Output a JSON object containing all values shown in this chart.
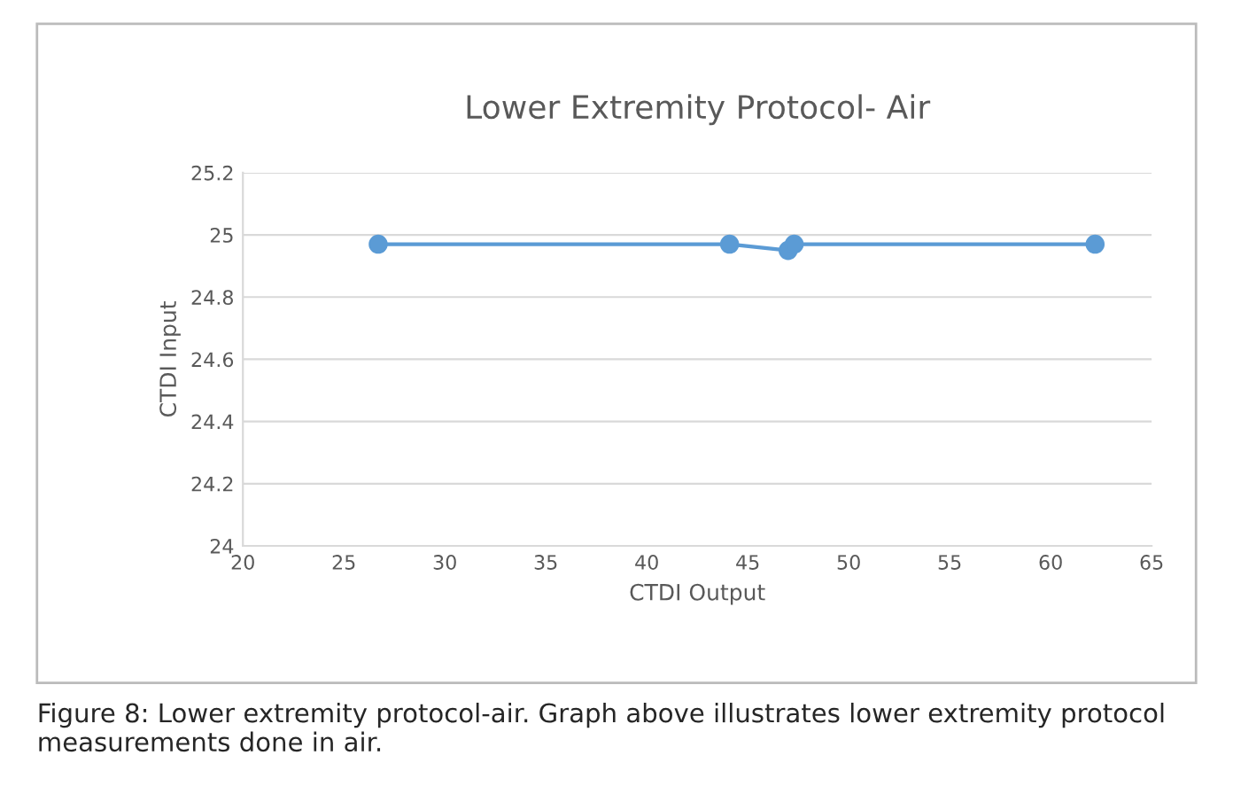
{
  "chart_data": {
    "type": "line",
    "title": "Lower Extremity Protocol- Air",
    "xlabel": "CTDI Output",
    "ylabel": "CTDI Input",
    "series": [
      {
        "color": "#5b9bd5",
        "x": [
          26.7,
          44.1,
          47.0,
          47.3,
          62.2
        ],
        "values": [
          24.97,
          24.97,
          24.95,
          24.97,
          24.97
        ]
      }
    ],
    "xlim": [
      20,
      65
    ],
    "xticks": [
      20,
      25,
      30,
      35,
      40,
      45,
      50,
      55,
      60,
      65
    ],
    "ylim": [
      24,
      25.2
    ],
    "yticks": [
      {
        "value": 24,
        "label": "24"
      },
      {
        "value": 24.2,
        "label": "24.2"
      },
      {
        "value": 24.4,
        "label": "24.4"
      },
      {
        "value": 24.6,
        "label": "24.6"
      },
      {
        "value": 24.8,
        "label": "24.8"
      },
      {
        "value": 25,
        "label": "25"
      },
      {
        "value": 25.2,
        "label": "25.2"
      }
    ],
    "grid": "y",
    "marker": "circle",
    "line_style": "solid",
    "legend": false,
    "annotations": [
      "Figure 8: Lower extremity protocol-air. Graph above illustrates lower extremity protocol measurements done in air."
    ]
  }
}
